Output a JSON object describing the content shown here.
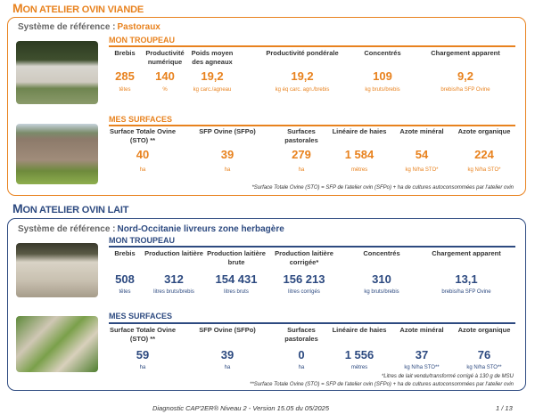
{
  "colors": {
    "orange": "#e8821e",
    "blue": "#2d4a80"
  },
  "viande": {
    "title_first": "M",
    "title_rest": "ON ATELIER OVIN VIANDE",
    "sysref_label": "Système de référence :",
    "sysref_value": "Pastoraux",
    "troupeau_title": "MON TROUPEAU",
    "troupeau": [
      {
        "header": "Brebis",
        "value": "285",
        "unit": "têtes"
      },
      {
        "header": "Productivité numérique",
        "value": "140",
        "unit": "%"
      },
      {
        "header": "Poids moyen des agneaux",
        "value": "19,2",
        "unit": "kg carc./agneau"
      },
      {
        "header": "Productivité pondérale",
        "value": "19,2",
        "unit": "kg éq carc. agn./brebis"
      },
      {
        "header": "Concentrés",
        "value": "109",
        "unit": "kg bruts/brebis"
      },
      {
        "header": "Chargement apparent",
        "value": "9,2",
        "unit": "brebis/ha SFP Ovine"
      }
    ],
    "surfaces_title": "MES SURFACES",
    "surfaces": [
      {
        "header": "Surface Totale Ovine (STO) **",
        "value": "40",
        "unit": "ha"
      },
      {
        "header": "SFP Ovine (SFPo)",
        "value": "39",
        "unit": "ha"
      },
      {
        "header": "Surfaces pastorales",
        "value": "279",
        "unit": "ha"
      },
      {
        "header": "Linéaire de haies",
        "value": "1 584",
        "unit": "mètres"
      },
      {
        "header": "Azote minéral",
        "value": "54",
        "unit": "kg N/ha STO*"
      },
      {
        "header": "Azote organique",
        "value": "224",
        "unit": "kg N/ha STO*"
      }
    ],
    "footnote": "*Surface Totale Ovine (STO) = SFP de l'atelier ovin (SFPo) + ha de cultures autoconsommées par l'atelier ovin"
  },
  "lait": {
    "title_first": "M",
    "title_rest": "ON ATELIER OVIN LAIT",
    "sysref_label": "Système de référence :",
    "sysref_value": "Nord-Occitanie livreurs zone herbagère",
    "troupeau_title": "MON TROUPEAU",
    "troupeau": [
      {
        "header": "Brebis",
        "value": "508",
        "unit": "têtes"
      },
      {
        "header": "Production laitière",
        "value": "312",
        "unit": "litres bruts/brebis"
      },
      {
        "header": "Production laitière brute",
        "value": "154 431",
        "unit": "litres bruts"
      },
      {
        "header": "Production laitière corrigée*",
        "value": "156 213",
        "unit": "litres corrigés"
      },
      {
        "header": "Concentrés",
        "value": "310",
        "unit": "kg bruts/brebis"
      },
      {
        "header": "Chargement apparent",
        "value": "13,1",
        "unit": "brebis/ha SFP Ovine"
      }
    ],
    "surfaces_title": "MES SURFACES",
    "surfaces": [
      {
        "header": "Surface Totale Ovine (STO) **",
        "value": "59",
        "unit": "ha"
      },
      {
        "header": "SFP Ovine (SFPo)",
        "value": "39",
        "unit": "ha"
      },
      {
        "header": "Surfaces pastorales",
        "value": "0",
        "unit": "ha"
      },
      {
        "header": "Linéaire de haies",
        "value": "1 556",
        "unit": "mètres"
      },
      {
        "header": "Azote minéral",
        "value": "37",
        "unit": "kg N/ha STO**"
      },
      {
        "header": "Azote organique",
        "value": "76",
        "unit": "kg N/ha STO**"
      }
    ],
    "footnote1": "*Litres de lait vendu/transformé corrigé à 130 g de MSU",
    "footnote2": "**Surface Totale Ovine (STO) = SFP de l'atelier ovin (SFPo) + ha de cultures autoconsommées par l'atelier ovin"
  },
  "footer": {
    "text": "Diagnostic CAP'2ER® Niveau 2 - Version 15.05 du 05/2025",
    "page": "1 / 13"
  }
}
